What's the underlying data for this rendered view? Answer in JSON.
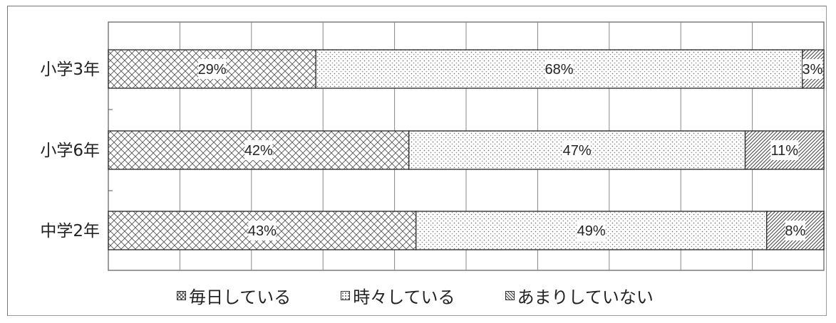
{
  "chart_data": {
    "type": "bar",
    "orientation": "horizontal",
    "stacked": true,
    "percent": true,
    "categories": [
      "小学3年",
      "小学6年",
      "中学2年"
    ],
    "series": [
      {
        "name": "毎日している",
        "values": [
          29,
          42,
          43
        ],
        "labels": [
          "29%",
          "42%",
          "43%"
        ],
        "pattern": "crosshatch"
      },
      {
        "name": "時々している",
        "values": [
          68,
          47,
          49
        ],
        "labels": [
          "68%",
          "47%",
          "49%"
        ],
        "pattern": "dots"
      },
      {
        "name": "あまりしていない",
        "values": [
          3,
          11,
          8
        ],
        "labels": [
          "3%",
          "11%",
          "8%"
        ],
        "pattern": "diagonal"
      }
    ],
    "xlim": [
      0,
      100
    ],
    "grid": true,
    "legend_position": "bottom"
  },
  "legend": {
    "items": [
      {
        "label": "毎日している"
      },
      {
        "label": "時々している"
      },
      {
        "label": "あまりしていない"
      }
    ]
  }
}
